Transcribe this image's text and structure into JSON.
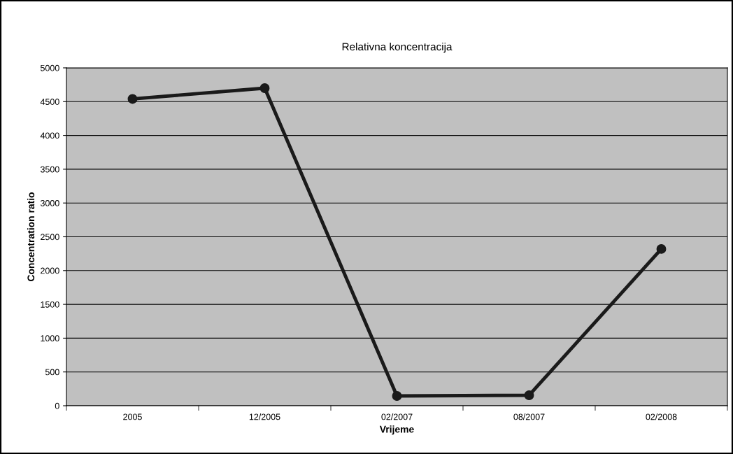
{
  "chart_data": {
    "type": "line",
    "title": "Relativna koncentracija",
    "xlabel": "Vrijeme",
    "ylabel": "Concentration ratio",
    "categories": [
      "2005",
      "12/2005",
      "02/2007",
      "08/2007",
      "02/2008"
    ],
    "series": [
      {
        "color": "#1a1a1a",
        "values": [
          4540,
          4700,
          145,
          155,
          2320
        ]
      }
    ],
    "ylim": [
      0,
      5000
    ],
    "yticks": [
      0,
      500,
      1000,
      1500,
      2000,
      2500,
      3000,
      3500,
      4000,
      4500,
      5000
    ],
    "grid": "y",
    "legend": false,
    "marker": "circle",
    "line_style": "solid"
  }
}
